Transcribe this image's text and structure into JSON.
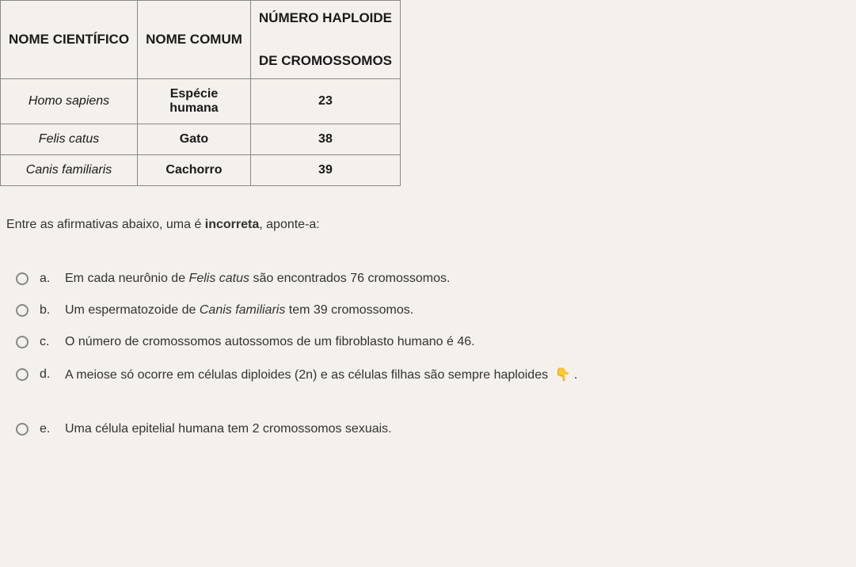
{
  "table": {
    "headers": {
      "scientific": "NOME CIENTÍFICO",
      "common": "NOME COMUM",
      "haploid_line1": "NÚMERO HAPLOIDE",
      "haploid_line2": "DE CROMOSSOMOS"
    },
    "rows": [
      {
        "scientific": "Homo sapiens",
        "common_line1": "Espécie",
        "common_line2": "humana",
        "number": "23"
      },
      {
        "scientific": "Felis catus",
        "common_line1": "Gato",
        "common_line2": "",
        "number": "38"
      },
      {
        "scientific": "Canis familiaris",
        "common_line1": "Cachorro",
        "common_line2": "",
        "number": "39"
      }
    ]
  },
  "prompt": {
    "pre": "Entre as afirmativas abaixo, uma é ",
    "bold": "incorreta",
    "post": ", aponte-a:"
  },
  "options": {
    "a": {
      "letter": "a.",
      "pre": "Em cada neurônio de ",
      "italic": "Felis catus",
      "post": " são encontrados 76 cromossomos."
    },
    "b": {
      "letter": "b.",
      "pre": "Um espermatozoide de ",
      "italic": "Canis familiaris",
      "post": " tem 39 cromossomos."
    },
    "c": {
      "letter": "c.",
      "pre": "O número de cromossomos autossomos de um fibroblasto humano é 46.",
      "italic": "",
      "post": ""
    },
    "d": {
      "letter": "d.",
      "pre": "A meiose só ocorre em células diploides (2n) e as células filhas são sempre haploides ",
      "italic": "",
      "post": "",
      "emoji": "👇",
      "tail": " ."
    },
    "e": {
      "letter": "e.",
      "pre": "Uma célula epitelial humana tem 2 cromossomos sexuais.",
      "italic": "",
      "post": ""
    }
  }
}
